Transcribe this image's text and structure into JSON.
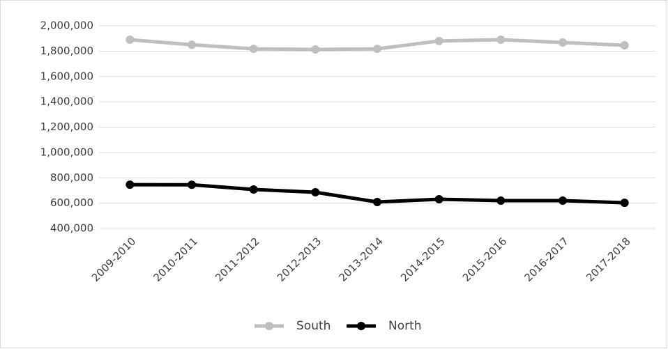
{
  "chart_data": {
    "type": "line",
    "categories": [
      "2009-2010",
      "2010-2011",
      "2011-2012",
      "2012-2013",
      "2013-2014",
      "2014-2015",
      "2015-2016",
      "2016-2017",
      "2017-2018"
    ],
    "series": [
      {
        "name": "South",
        "color": "#bfbfbf",
        "values": [
          1890000,
          1850000,
          1818000,
          1813000,
          1818000,
          1880000,
          1890000,
          1868000,
          1846000
        ]
      },
      {
        "name": "North",
        "color": "#000000",
        "values": [
          746000,
          745000,
          708000,
          686000,
          609000,
          631000,
          620000,
          620000,
          603000
        ]
      }
    ],
    "ylim": [
      400000,
      2000000
    ],
    "yticks": [
      {
        "value": 400000,
        "label": "400,000"
      },
      {
        "value": 600000,
        "label": "600,000"
      },
      {
        "value": 800000,
        "label": "800,000"
      },
      {
        "value": 1000000,
        "label": "1,000,000"
      },
      {
        "value": 1200000,
        "label": "1,200,000"
      },
      {
        "value": 1400000,
        "label": "1,400,000"
      },
      {
        "value": 1600000,
        "label": "1,600,000"
      },
      {
        "value": 1800000,
        "label": "1,800,000"
      },
      {
        "value": 2000000,
        "label": "2,000,000"
      }
    ],
    "grid": true,
    "legend": "bottom"
  }
}
